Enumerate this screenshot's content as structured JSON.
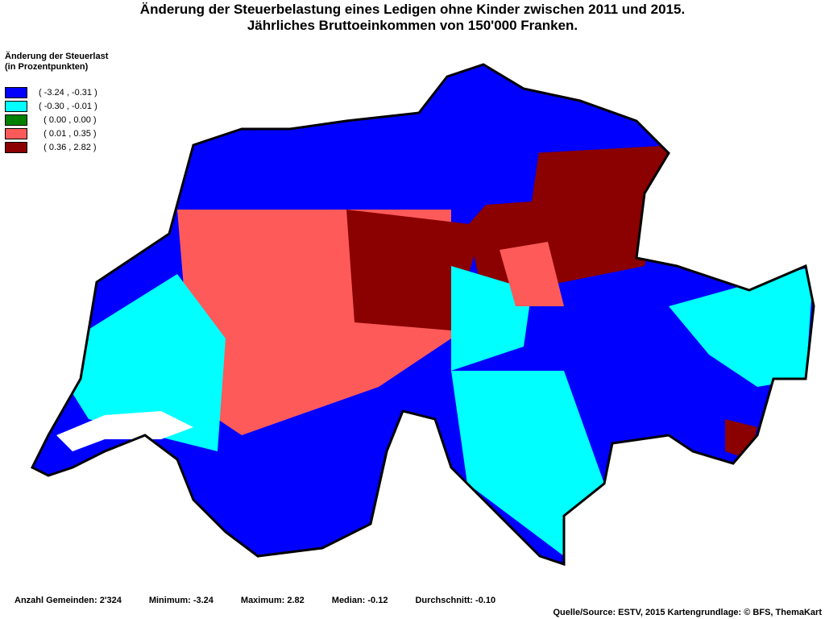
{
  "title": {
    "line1": "Änderung der Steuerbelastung eines Ledigen ohne Kinder zwischen 2011 und 2015.",
    "line2": "Jährliches Bruttoeinkommen von 150'000 Franken."
  },
  "legend": {
    "title_line1": "Änderung der Steuerlast",
    "title_line2": "(in Prozentpunkten)",
    "items": [
      {
        "label": "( -3.24 , -0.31 )",
        "color": "#0000ff"
      },
      {
        "label": "( -0.30 , -0.01 )",
        "color": "#00ffff"
      },
      {
        "label": "  ( 0.00 , 0.00 )",
        "color": "#008000"
      },
      {
        "label": "  ( 0.01 , 0.35 )",
        "color": "#ff5a5a"
      },
      {
        "label": "  ( 0.36 , 2.82 )",
        "color": "#8b0000"
      }
    ]
  },
  "stats": {
    "count": "Anzahl Gemeinden: 2'324",
    "min": "Minimum: -3.24",
    "max": "Maximum: 2.82",
    "median": "Median: -0.12",
    "mean": "Durchschnitt: -0.10"
  },
  "source": "Quelle/Source: ESTV, 2015 Kartengrundlage: © BFS, ThemaKart"
}
